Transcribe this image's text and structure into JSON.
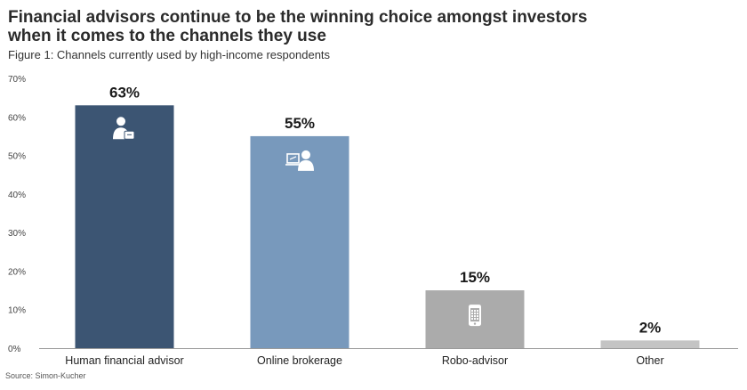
{
  "header": {
    "title_line1": "Financial advisors continue to be the winning choice amongst investors",
    "title_line2": "when it comes to the channels they use",
    "subtitle": "Figure 1: Channels currently used by high-income respondents"
  },
  "footer": {
    "source": "Source: Simon-Kucher"
  },
  "chart_data": {
    "type": "bar",
    "title": "Financial advisors continue to be the winning choice amongst investors when it comes to the channels they use",
    "subtitle": "Figure 1: Channels currently used by high-income respondents",
    "categories": [
      "Human financial advisor",
      "Online brokerage",
      "Robo-advisor",
      "Other"
    ],
    "values": [
      63,
      55,
      15,
      2
    ],
    "value_labels": [
      "63%",
      "55%",
      "15%",
      "2%"
    ],
    "bar_colors": [
      "#3c5573",
      "#7899bc",
      "#ababab",
      "#c4c4c4"
    ],
    "icons": [
      "advisor-person-icon",
      "person-at-computer-icon",
      "smartphone-icon",
      ""
    ],
    "ylim": [
      0,
      70
    ],
    "yticks": [
      0,
      10,
      20,
      30,
      40,
      50,
      60,
      70
    ],
    "ytick_labels": [
      "0%",
      "10%",
      "20%",
      "30%",
      "40%",
      "50%",
      "60%",
      "70%"
    ],
    "xlabel": "",
    "ylabel": "",
    "grid": false,
    "legend": "none"
  }
}
